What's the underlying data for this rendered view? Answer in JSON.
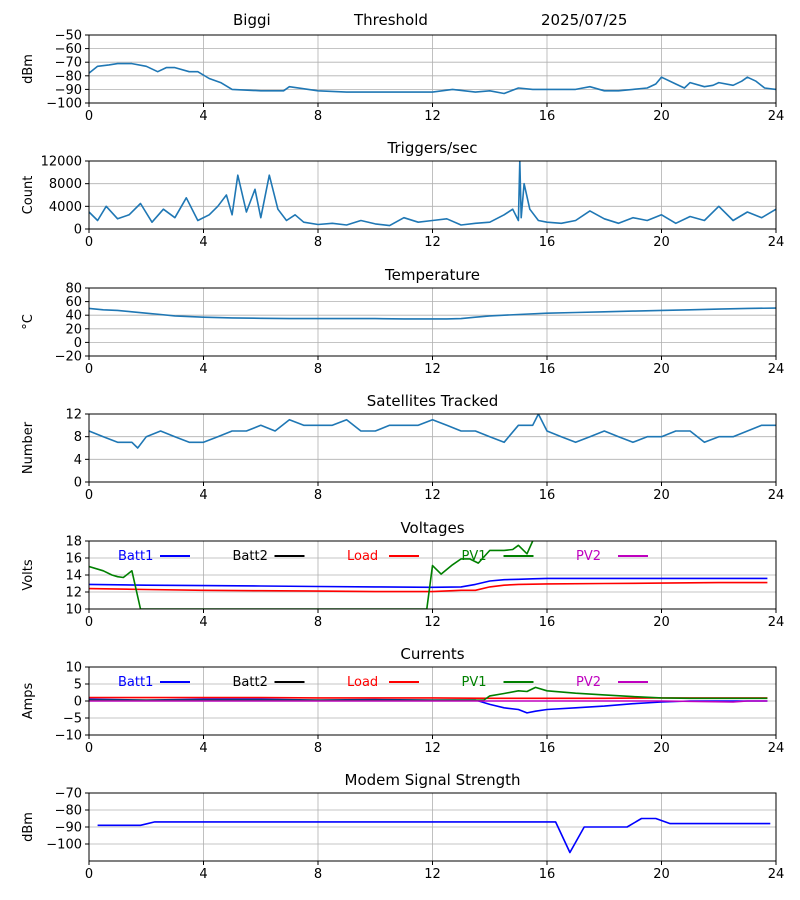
{
  "header": {
    "station": "Biggi",
    "label": "Threshold",
    "date": "2025/07/25"
  },
  "chart_data": [
    {
      "type": "line",
      "title": "",
      "ylabel": "dBm",
      "xlim": [
        0,
        24
      ],
      "ylim": [
        -100,
        -50
      ],
      "xticks": [
        0,
        4,
        8,
        12,
        16,
        20,
        24
      ],
      "yticks": [
        -100,
        -90,
        -80,
        -70,
        -60,
        -50
      ],
      "ytick_labels": [
        "−100",
        "−90",
        "−80",
        "−70",
        "−60",
        "−50"
      ],
      "grid": true,
      "series": [
        {
          "color": "#1f77b4",
          "x": [
            0,
            0.3,
            0.7,
            1.0,
            1.5,
            2.0,
            2.4,
            2.7,
            3.0,
            3.5,
            3.8,
            4.2,
            4.6,
            5.0,
            6.0,
            6.8,
            7.0,
            8.0,
            9.0,
            10.0,
            11.0,
            12.0,
            12.7,
            13.5,
            14.0,
            14.5,
            15.0,
            15.5,
            16.0,
            17.0,
            17.5,
            18.0,
            18.5,
            19.0,
            19.5,
            19.8,
            20.0,
            20.5,
            20.8,
            21.0,
            21.5,
            21.8,
            22.0,
            22.5,
            22.8,
            23.0,
            23.3,
            23.6,
            24.0
          ],
          "values": [
            -78,
            -73,
            -72,
            -71,
            -71,
            -73,
            -77,
            -74,
            -74,
            -77,
            -77,
            -82,
            -85,
            -90,
            -91,
            -91,
            -88,
            -91,
            -92,
            -92,
            -92,
            -92,
            -90,
            -92,
            -91,
            -93,
            -89,
            -90,
            -90,
            -90,
            -88,
            -91,
            -91,
            -90,
            -89,
            -86,
            -81,
            -86,
            -89,
            -85,
            -88,
            -87,
            -85,
            -87,
            -84,
            -81,
            -84,
            -89,
            -90
          ]
        }
      ]
    },
    {
      "type": "line",
      "title": "Triggers/sec",
      "ylabel": "Count",
      "xlim": [
        0,
        24
      ],
      "ylim": [
        0,
        12000
      ],
      "xticks": [
        0,
        4,
        8,
        12,
        16,
        20,
        24
      ],
      "yticks": [
        0,
        4000,
        8000,
        12000
      ],
      "ytick_labels": [
        "0",
        "4000",
        "8000",
        "12000"
      ],
      "grid": true,
      "series": [
        {
          "color": "#1f77b4",
          "x": [
            0,
            0.3,
            0.6,
            1.0,
            1.4,
            1.8,
            2.2,
            2.6,
            3.0,
            3.4,
            3.8,
            4.2,
            4.5,
            4.8,
            5.0,
            5.2,
            5.5,
            5.8,
            6.0,
            6.3,
            6.6,
            6.9,
            7.2,
            7.5,
            8.0,
            8.5,
            9.0,
            9.5,
            10.0,
            10.5,
            11.0,
            11.5,
            12.0,
            12.5,
            13.0,
            13.5,
            14.0,
            14.5,
            14.8,
            15.0,
            15.05,
            15.1,
            15.2,
            15.4,
            15.7,
            16.0,
            16.5,
            17.0,
            17.5,
            18.0,
            18.5,
            19.0,
            19.5,
            20.0,
            20.5,
            21.0,
            21.5,
            22.0,
            22.5,
            23.0,
            23.5,
            24.0
          ],
          "values": [
            3000,
            1500,
            4000,
            1800,
            2500,
            4500,
            1200,
            3500,
            2000,
            5500,
            1500,
            2500,
            4000,
            6000,
            2500,
            9500,
            3000,
            7000,
            2000,
            9500,
            3500,
            1500,
            2500,
            1200,
            800,
            1000,
            700,
            1500,
            900,
            600,
            2000,
            1200,
            1500,
            1800,
            700,
            1000,
            1200,
            2500,
            3500,
            1500,
            12000,
            2000,
            8000,
            3500,
            1500,
            1200,
            1000,
            1500,
            3200,
            1800,
            1000,
            2000,
            1500,
            2500,
            1000,
            2200,
            1500,
            4000,
            1500,
            3000,
            2000,
            3500
          ]
        }
      ]
    },
    {
      "type": "line",
      "title": "Temperature",
      "ylabel": "°C",
      "xlim": [
        0,
        24
      ],
      "ylim": [
        -20,
        80
      ],
      "xticks": [
        0,
        4,
        8,
        12,
        16,
        20,
        24
      ],
      "yticks": [
        -20,
        0,
        20,
        40,
        60,
        80
      ],
      "ytick_labels": [
        "−20",
        "0",
        "20",
        "40",
        "60",
        "80"
      ],
      "grid": true,
      "series": [
        {
          "color": "#1f77b4",
          "x": [
            0,
            0.5,
            1,
            1.5,
            2,
            2.5,
            3,
            3.5,
            4,
            5,
            6,
            7,
            8,
            9,
            10,
            11,
            12,
            12.5,
            13,
            13.5,
            14,
            15,
            16,
            17,
            18,
            19,
            20,
            21,
            22,
            23,
            24
          ],
          "values": [
            50,
            48,
            47,
            45,
            43,
            41,
            39,
            38,
            37,
            36,
            35.5,
            35,
            35,
            35,
            35,
            34.5,
            34.5,
            34.5,
            35,
            37,
            39,
            41,
            43,
            44,
            45,
            46,
            47,
            48,
            49,
            50,
            50.5
          ]
        }
      ]
    },
    {
      "type": "line",
      "title": "Satellites Tracked",
      "ylabel": "Number",
      "xlim": [
        0,
        24
      ],
      "ylim": [
        0,
        12
      ],
      "xticks": [
        0,
        4,
        8,
        12,
        16,
        20,
        24
      ],
      "yticks": [
        0,
        4,
        8,
        12
      ],
      "ytick_labels": [
        "0",
        "4",
        "8",
        "12"
      ],
      "grid": true,
      "series": [
        {
          "color": "#1f77b4",
          "x": [
            0,
            0.5,
            1.0,
            1.5,
            1.7,
            2.0,
            2.5,
            3.0,
            3.5,
            4.0,
            4.5,
            5.0,
            5.5,
            6.0,
            6.5,
            7.0,
            7.5,
            8.0,
            8.5,
            9.0,
            9.5,
            10.0,
            10.5,
            11.0,
            11.5,
            12.0,
            12.5,
            13.0,
            13.5,
            14.0,
            14.5,
            15.0,
            15.5,
            15.7,
            16.0,
            16.5,
            17.0,
            17.5,
            18.0,
            18.5,
            19.0,
            19.5,
            20.0,
            20.5,
            21.0,
            21.5,
            22.0,
            22.5,
            23.0,
            23.5,
            24.0
          ],
          "values": [
            9,
            8,
            7,
            7,
            6,
            8,
            9,
            8,
            7,
            7,
            8,
            9,
            9,
            10,
            9,
            11,
            10,
            10,
            10,
            11,
            9,
            9,
            10,
            10,
            10,
            11,
            10,
            9,
            9,
            8,
            7,
            10,
            10,
            12,
            9,
            8,
            7,
            8,
            9,
            8,
            7,
            8,
            8,
            9,
            9,
            7,
            8,
            8,
            9,
            10,
            10
          ]
        }
      ]
    },
    {
      "type": "line",
      "title": "Voltages",
      "ylabel": "Volts",
      "xlim": [
        0,
        24
      ],
      "ylim": [
        10,
        18
      ],
      "xticks": [
        0,
        4,
        8,
        12,
        16,
        20,
        24
      ],
      "yticks": [
        10,
        12,
        14,
        16,
        18
      ],
      "ytick_labels": [
        "10",
        "12",
        "14",
        "16",
        "18"
      ],
      "grid": true,
      "legend_position": "inside-top",
      "series": [
        {
          "name": "Batt1",
          "color": "#0000ff",
          "x": [
            0,
            2,
            4,
            6,
            8,
            10,
            12,
            13,
            13.5,
            14,
            14.5,
            15,
            15.5,
            16,
            18,
            20,
            22,
            23.7
          ],
          "values": [
            12.9,
            12.8,
            12.75,
            12.7,
            12.65,
            12.6,
            12.55,
            12.6,
            12.9,
            13.3,
            13.45,
            13.5,
            13.55,
            13.6,
            13.6,
            13.6,
            13.6,
            13.6
          ]
        },
        {
          "name": "Batt2",
          "color": "#000000",
          "x": [],
          "values": []
        },
        {
          "name": "Load",
          "color": "#ff0000",
          "x": [
            0,
            2,
            4,
            6,
            8,
            10,
            12,
            13,
            13.5,
            14,
            14.5,
            15,
            16,
            18,
            20,
            22,
            23.7
          ],
          "values": [
            12.4,
            12.3,
            12.2,
            12.15,
            12.1,
            12.05,
            12.05,
            12.2,
            12.2,
            12.6,
            12.8,
            12.9,
            12.95,
            13.0,
            13.05,
            13.1,
            13.1
          ]
        },
        {
          "name": "PV1",
          "color": "#008000",
          "x": [
            0,
            0.5,
            0.8,
            1.0,
            1.2,
            1.5,
            1.8,
            11.8,
            12.0,
            12.3,
            12.7,
            13.0,
            13.3,
            13.6,
            14.0,
            14.5,
            14.8,
            15.0,
            15.3,
            15.5
          ],
          "values": [
            15.0,
            14.5,
            14.0,
            13.8,
            13.7,
            14.5,
            10.0,
            10.0,
            15.1,
            14.1,
            15.2,
            15.9,
            15.9,
            15.4,
            16.9,
            16.9,
            17.0,
            17.5,
            16.5,
            18.0
          ]
        },
        {
          "name": "PV2",
          "color": "#bf00bf",
          "x": [],
          "values": []
        }
      ]
    },
    {
      "type": "line",
      "title": "Currents",
      "ylabel": "Amps",
      "xlim": [
        0,
        24
      ],
      "ylim": [
        -10,
        10
      ],
      "xticks": [
        0,
        4,
        8,
        12,
        16,
        20,
        24
      ],
      "yticks": [
        -10,
        -5,
        0,
        5,
        10
      ],
      "ytick_labels": [
        "−10",
        "−5",
        "0",
        "5",
        "10"
      ],
      "grid": true,
      "legend_position": "inside-top",
      "series": [
        {
          "name": "Batt1",
          "color": "#0000ff",
          "x": [
            0,
            2,
            4,
            6,
            8,
            10,
            12,
            13.5,
            14,
            14.5,
            15,
            15.3,
            15.6,
            16,
            17,
            18,
            19,
            20,
            21,
            22,
            23,
            23.7
          ],
          "values": [
            0.5,
            0.3,
            0.5,
            0.5,
            0.3,
            0.4,
            0.3,
            0.3,
            -1,
            -2,
            -2.5,
            -3.5,
            -3,
            -2.5,
            -2,
            -1.5,
            -0.8,
            -0.3,
            0,
            0,
            0,
            0
          ]
        },
        {
          "name": "Batt2",
          "color": "#000000",
          "x": [],
          "values": []
        },
        {
          "name": "Load",
          "color": "#ff0000",
          "x": [
            0,
            2,
            4,
            6,
            8,
            10,
            12,
            14,
            16,
            18,
            20,
            22,
            23.7
          ],
          "values": [
            1.0,
            1.0,
            1.0,
            1.0,
            0.9,
            0.9,
            0.9,
            0.8,
            0.8,
            0.8,
            0.9,
            0.9,
            0.9
          ]
        },
        {
          "name": "PV1",
          "color": "#008000",
          "x": [
            0,
            2,
            4,
            6,
            8,
            10,
            12,
            13.8,
            14,
            14.5,
            15,
            15.3,
            15.6,
            16,
            17,
            18,
            19,
            20,
            21,
            22,
            23,
            23.7
          ],
          "values": [
            0.2,
            0.2,
            0.2,
            0.2,
            0.2,
            0.2,
            0.2,
            0.3,
            1.5,
            2.2,
            3.0,
            2.8,
            4.0,
            3.0,
            2.3,
            1.8,
            1.3,
            0.9,
            0.8,
            0.8,
            0.8,
            0.8
          ]
        },
        {
          "name": "PV2",
          "color": "#bf00bf",
          "x": [
            0,
            4,
            8,
            12,
            16,
            20,
            22.5,
            23,
            23.7
          ],
          "values": [
            0,
            0,
            0,
            0,
            0,
            0,
            -0.3,
            0,
            0
          ]
        }
      ]
    },
    {
      "type": "line",
      "title": "Modem Signal Strength",
      "ylabel": "dBm",
      "xlim": [
        0,
        24
      ],
      "ylim": [
        -110,
        -70
      ],
      "xticks": [
        0,
        4,
        8,
        12,
        16,
        20,
        24
      ],
      "yticks": [
        -100,
        -90,
        -80,
        -70
      ],
      "ytick_labels": [
        "−100",
        "−90",
        "−80",
        "−70"
      ],
      "grid": true,
      "series": [
        {
          "color": "#0000ff",
          "x": [
            0.3,
            1.8,
            2.3,
            16.3,
            16.8,
            17.3,
            18.8,
            19.3,
            19.8,
            20.3,
            23.8
          ],
          "values": [
            -89,
            -89,
            -87,
            -87,
            -105,
            -90,
            -90,
            -85,
            -85,
            -88,
            -88
          ]
        }
      ]
    }
  ]
}
